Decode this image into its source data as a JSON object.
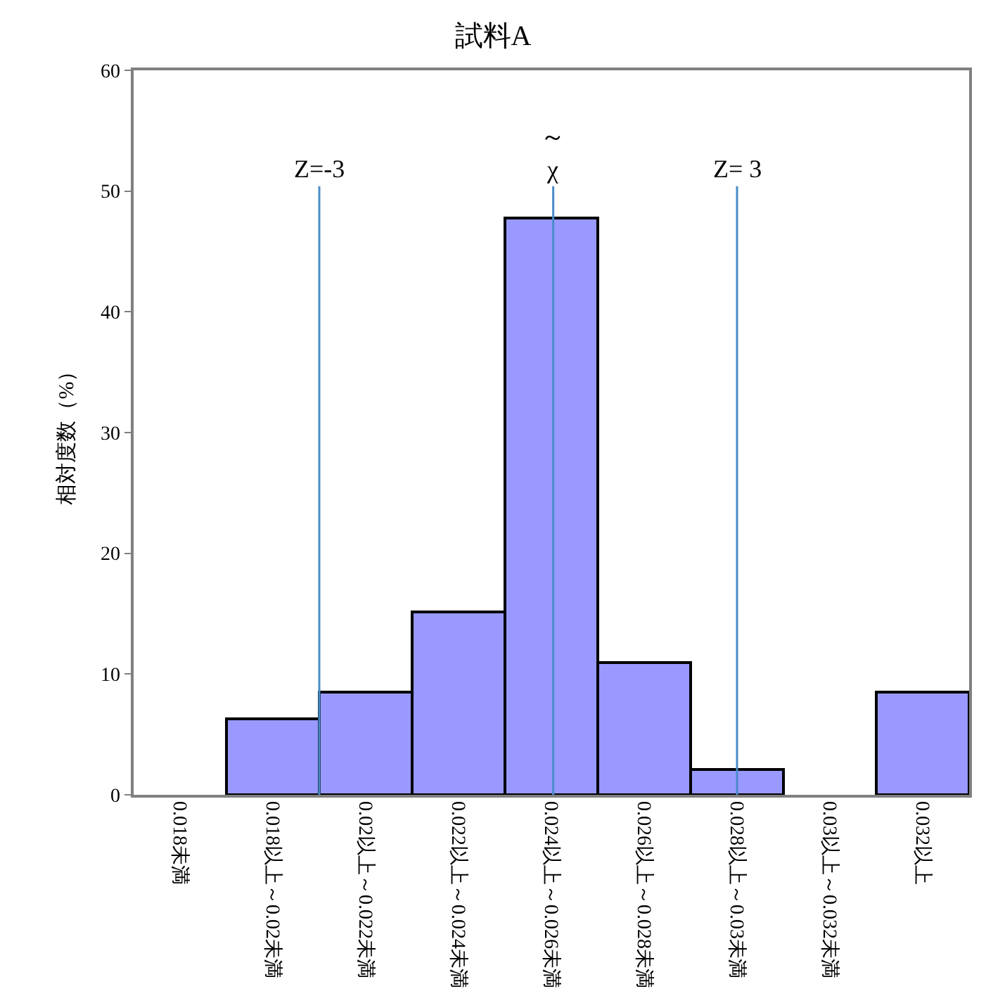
{
  "chart_data": {
    "type": "bar",
    "title": "試料A",
    "ylabel": "相対度数（%）",
    "categories": [
      "0.018未満",
      "0.018以上～0.02未満",
      "0.02以上～0.022未満",
      "0.022以上～0.024未満",
      "0.024以上～0.026未満",
      "0.026以上～0.028未満",
      "0.028以上～0.03未満",
      "0.03以上～0.032未満",
      "0.032以上"
    ],
    "values": [
      0,
      6.3,
      8.5,
      15.2,
      47.8,
      10.9,
      2.1,
      0,
      8.5
    ],
    "color": "#9999ff",
    "ylim": [
      0,
      60
    ],
    "yticks": [
      0,
      10,
      20,
      30,
      40,
      50,
      60
    ],
    "annotations": [
      "Z=-3",
      "～\nχ",
      "Z= 3"
    ]
  }
}
